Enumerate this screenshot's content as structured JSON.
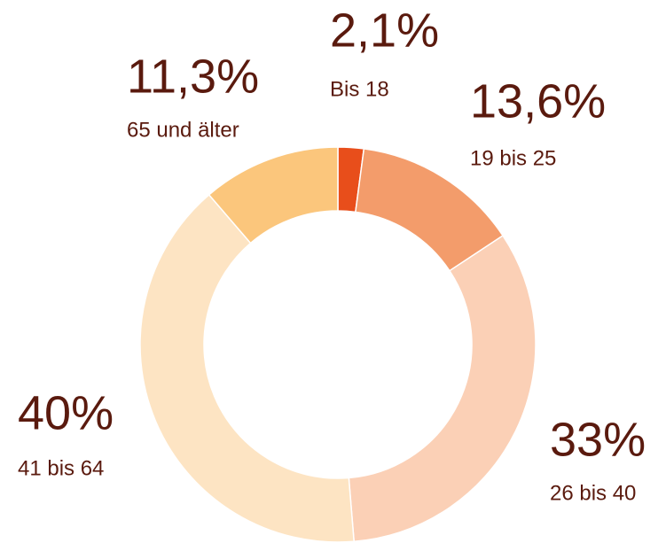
{
  "chart_data": {
    "type": "donut",
    "categories": [
      "Bis 18",
      "19 bis 25",
      "26 bis 40",
      "41 bis 64",
      "65 und älter"
    ],
    "values": [
      2.1,
      13.6,
      33,
      40,
      11.3
    ],
    "value_labels": [
      "2,1%",
      "13,6%",
      "33%",
      "40%",
      "11,3%"
    ],
    "colors": [
      "#e84e1b",
      "#f39c6b",
      "#fbd0b6",
      "#fde4c3",
      "#fbc67c"
    ]
  }
}
